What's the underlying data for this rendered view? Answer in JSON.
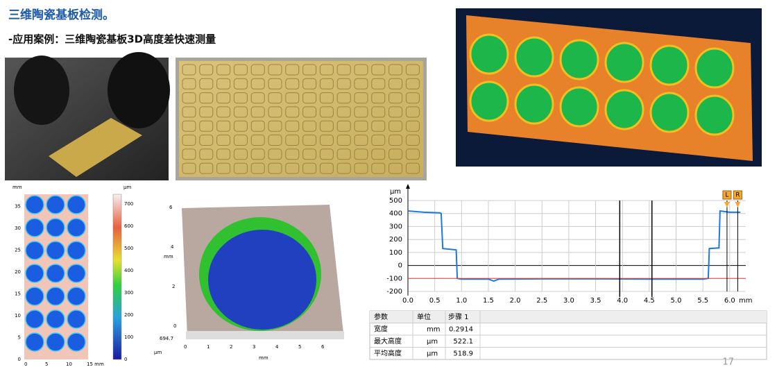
{
  "header": {
    "title": "三维陶瓷基板检测。",
    "subtitle": "-应用案例：三维陶瓷基板3D高度差快速测量"
  },
  "heatmap": {
    "axis_unit": "mm",
    "yticks": [
      "0",
      "5",
      "10",
      "15",
      "20",
      "25",
      "30",
      "35"
    ],
    "xticks": [
      "0",
      "5",
      "10",
      "15 mm"
    ],
    "colorbar_unit": "µm",
    "colorbar_ticks": [
      "0",
      "100",
      "200",
      "300",
      "400",
      "500",
      "600",
      "700"
    ]
  },
  "render3d": {
    "axis_unit": "mm",
    "yticks": [
      "0",
      "2",
      "4",
      "6"
    ],
    "z_value": "694.7",
    "z_unit": "µm",
    "xticks": [
      "0",
      "1",
      "2",
      "3",
      "4",
      "5",
      "6"
    ],
    "x_unit": "mm"
  },
  "chart_data": {
    "type": "line",
    "x_label": "mm",
    "y_label": "µm",
    "xlim": [
      0,
      6.3
    ],
    "ylim": [
      -200,
      500
    ],
    "xticks": [
      {
        "value": 0,
        "label": "0.0"
      },
      {
        "value": 0.5,
        "label": "0.5"
      },
      {
        "value": 1,
        "label": "1.0"
      },
      {
        "value": 1.5,
        "label": "1.5"
      },
      {
        "value": 2,
        "label": "2.0"
      },
      {
        "value": 2.5,
        "label": "2.5"
      },
      {
        "value": 3,
        "label": "3.0"
      },
      {
        "value": 3.5,
        "label": "3.5"
      },
      {
        "value": 4,
        "label": "4.0"
      },
      {
        "value": 4.5,
        "label": "4.5"
      },
      {
        "value": 5,
        "label": "5.0"
      },
      {
        "value": 5.5,
        "label": "5.5"
      },
      {
        "value": 6,
        "label": "6.0"
      }
    ],
    "yticks": [
      -200,
      -100,
      0,
      100,
      200,
      300,
      400,
      500
    ],
    "grid": true,
    "series": [
      {
        "color": "#1f78e0",
        "x": [
          0,
          0.3,
          0.6,
          0.62,
          0.65,
          0.9,
          0.92,
          1.0,
          1.5,
          1.6,
          1.7,
          2.5,
          3.5,
          4.5,
          5.5,
          5.6,
          5.62,
          5.8,
          5.82,
          6.0,
          6.2
        ],
        "values": [
          420,
          410,
          405,
          400,
          130,
          120,
          -100,
          -105,
          -105,
          -120,
          -105,
          -103,
          -103,
          -105,
          -105,
          -100,
          130,
          135,
          420,
          410,
          410
        ]
      },
      {
        "color": "#e04040",
        "x": [
          0,
          6.3
        ],
        "values": [
          -100,
          -100
        ]
      }
    ],
    "cursors": [
      3.95,
      4.55
    ],
    "markers": [
      {
        "label": "L",
        "x": 5.95
      },
      {
        "label": "R",
        "x": 6.15
      }
    ]
  },
  "table": {
    "header": [
      "参数",
      "单位",
      "步骤 1"
    ],
    "rows": [
      [
        "宽度",
        "mm",
        "0.2914"
      ],
      [
        "最大高度",
        "µm",
        "522.1"
      ],
      [
        "平均高度",
        "µm",
        "518.9"
      ]
    ]
  },
  "page_number": "17"
}
